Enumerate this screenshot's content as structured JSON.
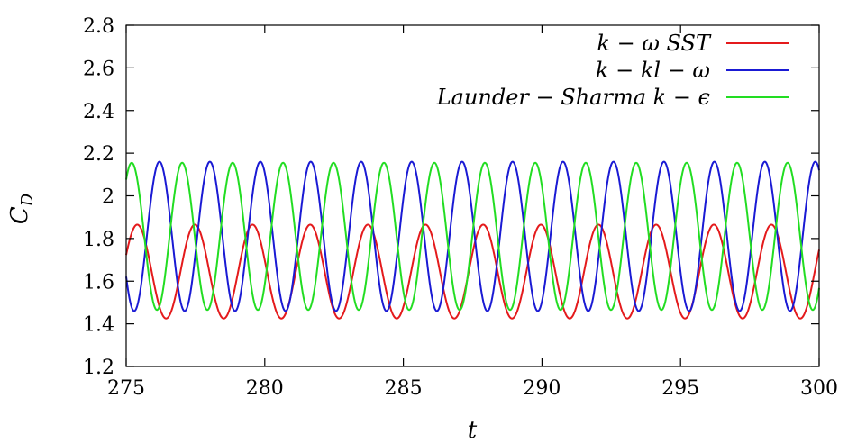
{
  "chart_data": {
    "type": "line",
    "title": "",
    "xlabel": "t",
    "ylabel": "C_D",
    "xlim": [
      275,
      300
    ],
    "ylim": [
      1.2,
      2.8
    ],
    "xticks": [
      "275",
      "280",
      "285",
      "290",
      "295",
      "300"
    ],
    "yticks": [
      "1.2",
      "1.4",
      "1.6",
      "1.8",
      "2",
      "2.2",
      "2.4",
      "2.6",
      "2.8"
    ],
    "grid": false,
    "legend_position": "top-right",
    "series": [
      {
        "name": "k − ω SST",
        "color": "#e41a1c",
        "mean": 1.645,
        "amplitude": 0.22,
        "period": 2.08,
        "peaks_t": [
          275.4,
          277.5,
          279.5,
          281.6,
          283.6,
          285.7,
          287.7,
          289.8,
          291.8,
          293.9,
          295.9,
          297.9
        ],
        "t_samples": [
          275.0,
          275.4,
          276.44,
          277.5,
          278.54,
          279.5,
          280.54,
          281.6,
          282.64,
          283.6,
          284.64,
          285.7,
          286.74,
          287.7,
          288.74,
          289.8,
          290.84,
          291.8,
          292.84,
          293.9,
          294.94,
          295.9,
          296.94,
          297.9,
          298.94,
          300.0
        ],
        "y_samples": [
          1.72,
          1.865,
          1.425,
          1.865,
          1.425,
          1.865,
          1.425,
          1.865,
          1.425,
          1.865,
          1.425,
          1.865,
          1.425,
          1.865,
          1.425,
          1.865,
          1.425,
          1.865,
          1.425,
          1.865,
          1.425,
          1.865,
          1.425,
          1.865,
          1.425,
          1.8
        ]
      },
      {
        "name": "k − kl − ω",
        "color": "#1a1ad4",
        "mean": 1.81,
        "amplitude": 0.35,
        "period": 1.82,
        "peaks_t": [
          276.2,
          278.0,
          279.8,
          281.6,
          283.4,
          285.2,
          287.0,
          288.8,
          290.6,
          292.4,
          294.2,
          296.0,
          297.8,
          299.6
        ],
        "t_samples": [
          275.0,
          275.3,
          276.2,
          277.1,
          278.0,
          278.9,
          279.8,
          280.7,
          281.6,
          282.5,
          283.4,
          284.3,
          285.2,
          286.1,
          287.0,
          287.9,
          288.8,
          289.7,
          290.6,
          291.5,
          292.4,
          293.3,
          294.2,
          295.1,
          296.0,
          296.9,
          297.8,
          298.7,
          299.6,
          300.0
        ],
        "y_samples": [
          1.64,
          1.46,
          2.14,
          1.46,
          2.16,
          1.46,
          2.14,
          1.46,
          2.15,
          1.46,
          2.14,
          1.46,
          2.15,
          1.46,
          2.14,
          1.46,
          2.15,
          1.46,
          2.14,
          1.46,
          2.15,
          1.46,
          2.14,
          1.46,
          2.15,
          1.46,
          2.14,
          1.46,
          2.15,
          2.15
        ]
      },
      {
        "name": "Launder − Sharma  k − ϵ",
        "color": "#22dd22",
        "mean": 1.81,
        "amplitude": 0.345,
        "period": 1.82,
        "peaks_t": [
          275.2,
          277.0,
          278.8,
          280.6,
          282.4,
          284.2,
          286.0,
          287.8,
          289.6,
          291.4,
          293.2,
          295.0,
          296.8,
          298.6
        ],
        "t_samples": [
          275.0,
          275.2,
          276.1,
          277.0,
          277.9,
          278.8,
          279.7,
          280.6,
          281.5,
          282.4,
          283.3,
          284.2,
          285.1,
          286.0,
          286.9,
          287.8,
          288.7,
          289.6,
          290.5,
          291.4,
          292.3,
          293.2,
          294.1,
          295.0,
          295.9,
          296.8,
          297.7,
          298.6,
          299.5,
          300.0
        ],
        "y_samples": [
          2.12,
          2.165,
          1.46,
          2.13,
          1.46,
          2.16,
          1.46,
          2.14,
          1.46,
          2.15,
          1.46,
          2.14,
          1.46,
          2.15,
          1.46,
          2.14,
          1.46,
          2.15,
          1.46,
          2.14,
          1.46,
          2.15,
          1.46,
          2.14,
          1.46,
          2.15,
          1.46,
          2.14,
          1.46,
          1.47
        ]
      }
    ]
  }
}
